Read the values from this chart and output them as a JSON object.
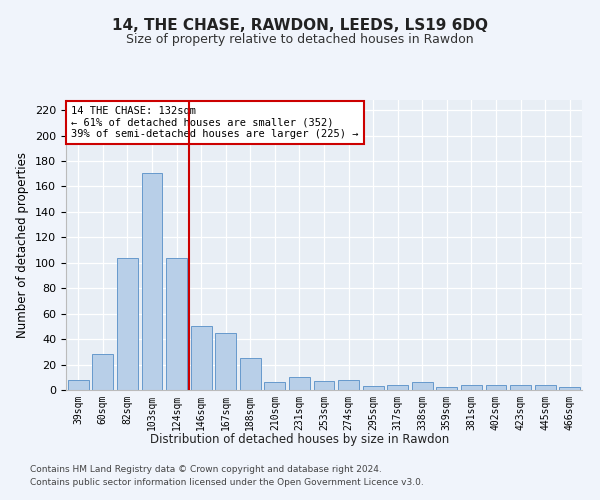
{
  "title": "14, THE CHASE, RAWDON, LEEDS, LS19 6DQ",
  "subtitle": "Size of property relative to detached houses in Rawdon",
  "xlabel": "Distribution of detached houses by size in Rawdon",
  "ylabel": "Number of detached properties",
  "categories": [
    "39sqm",
    "60sqm",
    "82sqm",
    "103sqm",
    "124sqm",
    "146sqm",
    "167sqm",
    "188sqm",
    "210sqm",
    "231sqm",
    "253sqm",
    "274sqm",
    "295sqm",
    "317sqm",
    "338sqm",
    "359sqm",
    "381sqm",
    "402sqm",
    "423sqm",
    "445sqm",
    "466sqm"
  ],
  "values": [
    8,
    28,
    104,
    171,
    104,
    50,
    45,
    25,
    6,
    10,
    7,
    8,
    3,
    4,
    6,
    2,
    4,
    4,
    4,
    4,
    2
  ],
  "bar_color": "#b8cfe8",
  "bar_edge_color": "#6699cc",
  "vline_x": 4.5,
  "vline_color": "#cc0000",
  "annotation_text": "14 THE CHASE: 132sqm\n← 61% of detached houses are smaller (352)\n39% of semi-detached houses are larger (225) →",
  "annotation_box_color": "#ffffff",
  "annotation_box_edge": "#cc0000",
  "ylim": [
    0,
    228
  ],
  "yticks": [
    0,
    20,
    40,
    60,
    80,
    100,
    120,
    140,
    160,
    180,
    200,
    220
  ],
  "footnote1": "Contains HM Land Registry data © Crown copyright and database right 2024.",
  "footnote2": "Contains public sector information licensed under the Open Government Licence v3.0.",
  "fig_bg_color": "#f0f4fb",
  "plot_bg_color": "#e8eef5"
}
